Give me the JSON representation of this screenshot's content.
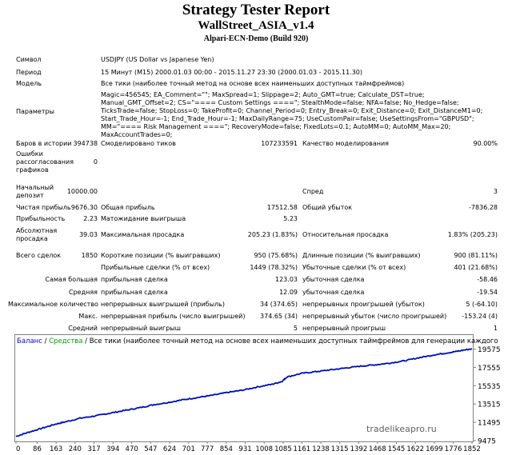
{
  "header": {
    "title": "Strategy Tester Report",
    "ea_name": "WallStreet_ASIA_v1.4",
    "server": "Alpari-ECN-Demo (Build 920)"
  },
  "info": {
    "symbol_label": "Символ",
    "symbol_value": "USDJPY (US Dollar vs Japanese Yen)",
    "period_label": "Период",
    "period_value": "15 Минут (M15) 2000.01.03 00:00 - 2015.11.27 23:30 (2000.01.03 - 2015.11.30)",
    "model_label": "Модель",
    "model_value": "Все тики (наиболее точный метод на основе всех наименьших доступных таймфреймов)",
    "params_label": "Параметры",
    "params_value": "Magic=456545; EA_Comment=\"\"; MaxSpread=1; Slippage=2; Auto_GMT=true; Calculate_DST=true; Manual_GMT_Offset=2; CS=\"==== Custom Settings ====\"; StealthMode=false; NFA=false; No_Hedge=false; TicksTrade=false; StopLoss=0; TakeProfit=0; Channel_Period=0; Entry_Break=0; Exit_Distance=0; Exit_DistanceM1=0; Start_Trade_Hour=-1; End_Trade_Hour=-1; MaxDailyRange=75; UseCustomPair=false; UseSettingsFrom=\"GBPUSD\"; MM=\"==== Risk Management ====\"; RecoveryMode=false; FixedLots=0.1; AutoMM=0; AutoMM_Max=20; MaxAccountTrades=0;"
  },
  "stats": {
    "bars_label": "Баров в истории",
    "bars_value": "394738",
    "ticks_label": "Смоделировано тиков",
    "ticks_value": "107233591",
    "quality_label": "Качество моделирования",
    "quality_value": "90.00%",
    "errors_label_1": "Ошибки",
    "errors_label_2": "рассогласования",
    "errors_label_3": "графиков",
    "errors_value": "0",
    "deposit_label_1": "Начальный",
    "deposit_label_2": "депозит",
    "deposit_value": "10000.00",
    "spread_label": "Спред",
    "spread_value": "3",
    "net_profit_label": "Чистая прибыль",
    "net_profit_value": "9676.30",
    "gross_profit_label": "Общая прибыль",
    "gross_profit_value": "17512.58",
    "gross_loss_label": "Общий убыток",
    "gross_loss_value": "-7836.28",
    "pf_label": "Прибыльность",
    "pf_value": "2.23",
    "expected_label": "Матожидание выигрыша",
    "expected_value": "5.23",
    "abs_dd_label_1": "Абсолютная",
    "abs_dd_label_2": "просадка",
    "abs_dd_value": "39.03",
    "max_dd_label": "Максимальная просадка",
    "max_dd_value": "205.23 (1.83%)",
    "rel_dd_label": "Относительная просадка",
    "rel_dd_value": "1.83% (205.23)",
    "total_trades_label": "Всего сделок",
    "total_trades_value": "1850",
    "short_label": "Короткие позиции (% выигравших)",
    "short_value": "950 (75.68%)",
    "long_label": "Длинные позиции (% выигравших)",
    "long_value": "900 (81.11%)",
    "profit_trades_label": "Прибыльные сделки (% от всех)",
    "profit_trades_value": "1449 (78.32%)",
    "loss_trades_label": "Убыточные сделки (% от всех)",
    "loss_trades_value": "401 (21.68%)",
    "largest_label_a": "Самая большая",
    "largest_label_b": "прибыльная сделка",
    "largest_profit_value": "123.03",
    "largest_loss_label": "убыточная сделка",
    "largest_loss_value": "-58.46",
    "average_label_a": "Средняя",
    "average_label_b": "прибыльная сделка",
    "average_profit_value": "12.09",
    "average_loss_label": "убыточная сделка",
    "average_loss_value": "-19.54",
    "max_count_label_a": "Максимальное количество",
    "max_count_label_b": "непрерывных выигрышей (прибыль)",
    "max_cons_wins_value": "34 (374.65)",
    "max_cons_losses_label": "непрерывных проигрышей (убыток)",
    "max_cons_losses_value": "5 (-64.10)",
    "max_label_a": "Макс.",
    "max_label_b": "непрерывная прибыль (число выигрышей)",
    "max_cons_profit_value": "374.65 (34)",
    "max_cons_loss_label": "непрерывный убыток (число проигрышей)",
    "max_cons_loss_value": "-153.24 (4)",
    "avg_label_a": "Средний",
    "avg_label_b": "непрерывный выигрыш",
    "avg_cons_wins_value": "5",
    "avg_cons_losses_label": "непрерывный проигрыш",
    "avg_cons_losses_value": "1"
  },
  "chart_legend": {
    "balance": "Баланс",
    "sep1": " / ",
    "equity": "Средства",
    "sep2": " / ",
    "rest": "Все тики (наиболее точный метод на основе всех наименьших доступных таймфреймов для генерации каждого"
  },
  "watermark": "tradelikeapro.ru",
  "colors": {
    "balance": "#0000e0",
    "equity": "#00a000",
    "frame": "#808080"
  },
  "chart_data": {
    "type": "line",
    "x_ticks": [
      "0",
      "86",
      "163",
      "240",
      "317",
      "394",
      "470",
      "547",
      "624",
      "701",
      "777",
      "854",
      "931",
      "1008",
      "1085",
      "1161",
      "1238",
      "1315",
      "1392",
      "1468",
      "1545",
      "1622",
      "1699",
      "1776",
      "1852"
    ],
    "y_ticks": [
      "19575",
      "17555",
      "15535",
      "13515",
      "11495",
      "9475"
    ],
    "ylim": [
      9475,
      19975
    ],
    "xlim": [
      0,
      1852
    ],
    "series": [
      {
        "name": "Баланс",
        "x": [
          0,
          50,
          100,
          160,
          200,
          260,
          320,
          380,
          440,
          500,
          560,
          620,
          680,
          740,
          800,
          860,
          920,
          980,
          1040,
          1080,
          1100,
          1160,
          1220,
          1280,
          1340,
          1400,
          1460,
          1520,
          1580,
          1640,
          1700,
          1760,
          1800,
          1852
        ],
        "y": [
          9950,
          10400,
          10800,
          11300,
          11550,
          11950,
          12200,
          12500,
          12800,
          13100,
          13450,
          13700,
          14000,
          14250,
          14500,
          14800,
          15050,
          15400,
          15700,
          16000,
          16500,
          16900,
          17100,
          17300,
          17500,
          17700,
          17850,
          18050,
          18300,
          18650,
          18950,
          19200,
          19380,
          19620
        ]
      }
    ]
  }
}
